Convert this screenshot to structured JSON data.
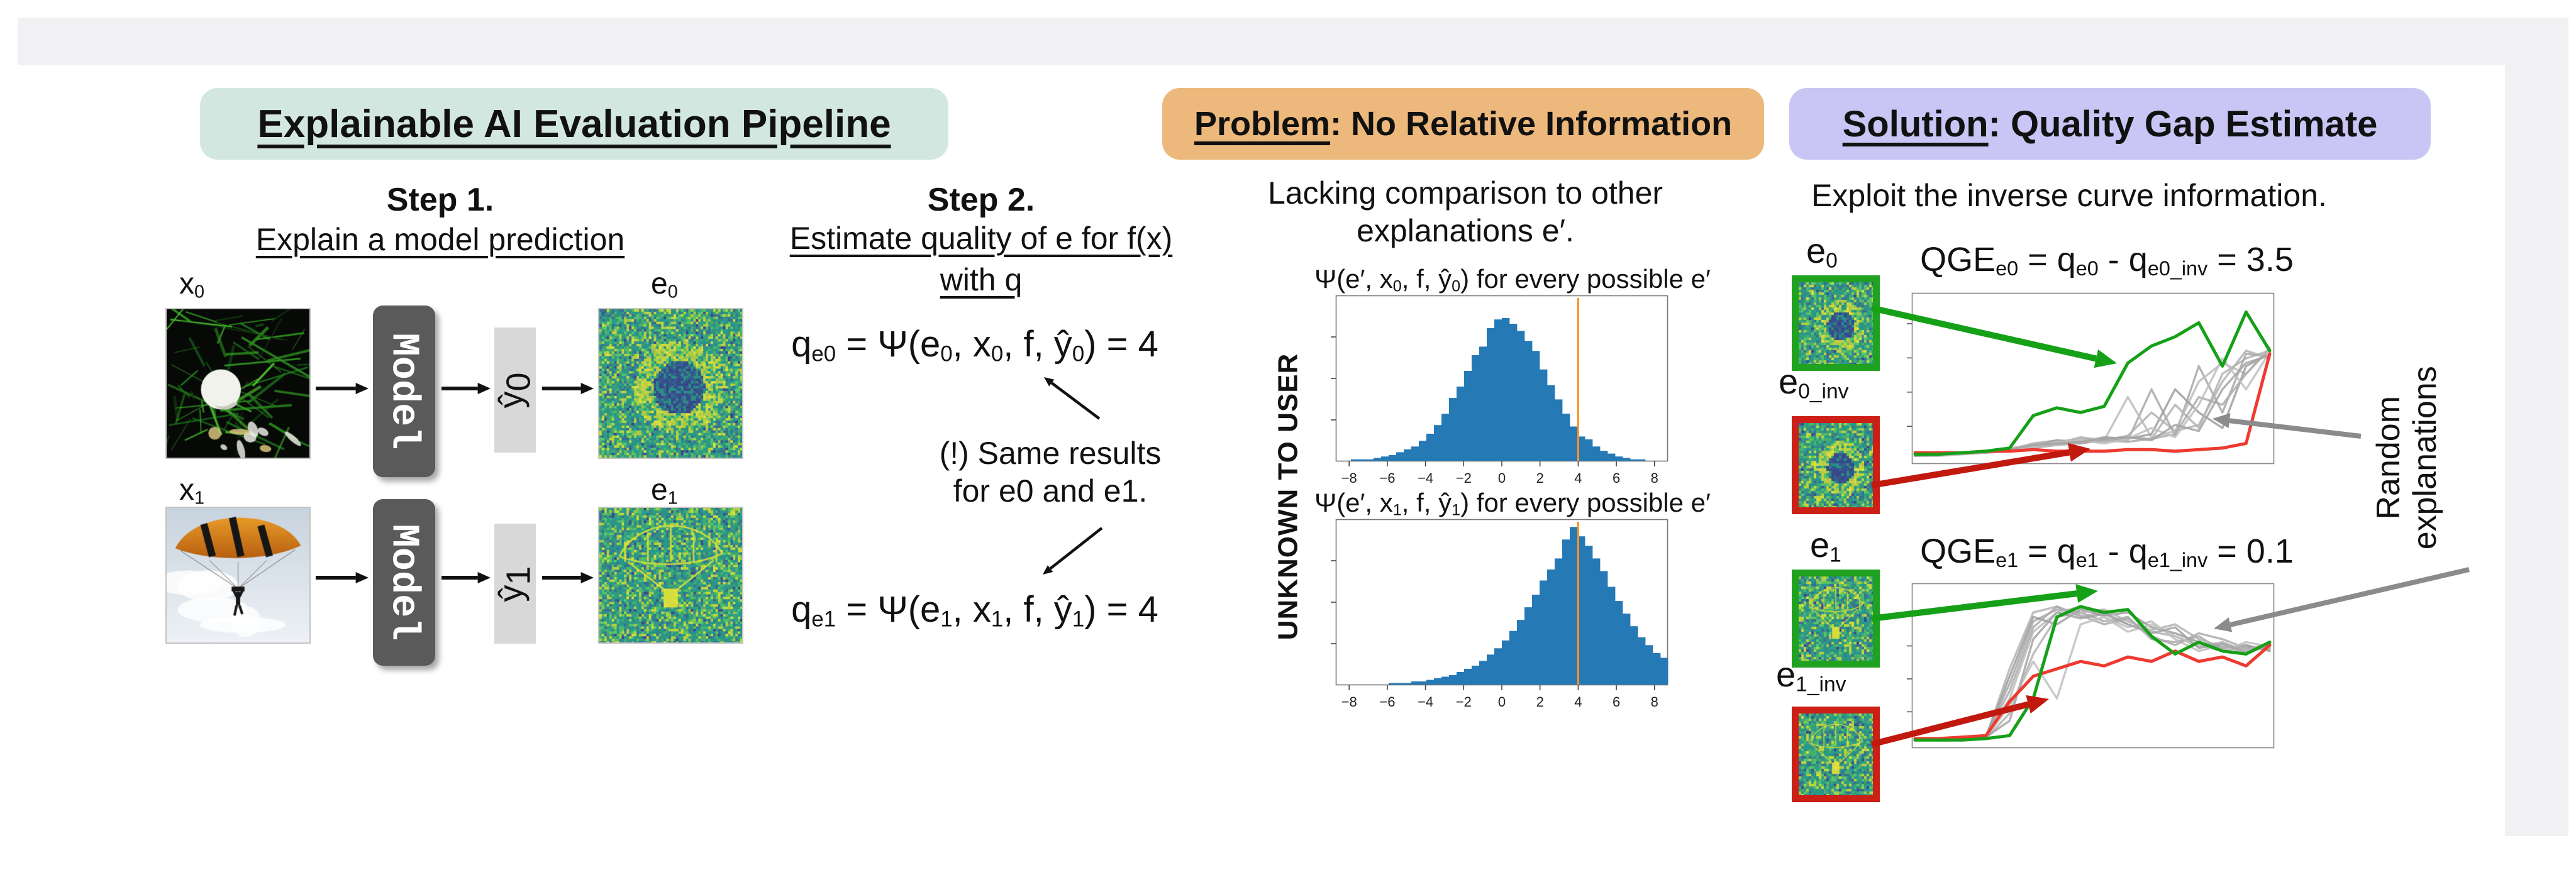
{
  "colors": {
    "pipeline_badge": "#d2e7e0",
    "problem_badge": "#edb87c",
    "solution_badge": "#c9c5f4",
    "model_box": "#5a5a5a",
    "prediction_box": "#d8d8d8",
    "hist_bar_blue": "#2579b5",
    "hist_marker_orange": "#f79428",
    "good_explanation_green": "#1fa21f",
    "inverse_explanation_red": "#cc1f15",
    "random_explanation_gray": "#b3b3b3"
  },
  "pipeline": {
    "title": "Explainable AI Evaluation Pipeline",
    "step1": {
      "title": "Step 1.",
      "subtitle": "Explain a model prediction"
    },
    "step2": {
      "title": "Step 2.",
      "subtitle_line1": "Estimate quality of e for f(x)",
      "subtitle_line2": "with q",
      "formula_e0": [
        {
          "t": "q"
        },
        {
          "s": "e0"
        },
        {
          "t": " = Ψ(e"
        },
        {
          "s": "0"
        },
        {
          "t": ", x"
        },
        {
          "s": "0"
        },
        {
          "t": ", f, ŷ"
        },
        {
          "s": "0"
        },
        {
          "t": ") = 4"
        }
      ],
      "note_line1": "(!) Same results",
      "note_line2": "for e0 and e1.",
      "formula_e1": [
        {
          "t": "q"
        },
        {
          "s": "e1"
        },
        {
          "t": " = Ψ(e"
        },
        {
          "s": "1"
        },
        {
          "t": ", x"
        },
        {
          "s": "1"
        },
        {
          "t": ", f, ŷ"
        },
        {
          "s": "1"
        },
        {
          "t": ") = 4"
        }
      ]
    },
    "rows": [
      {
        "input_label": [
          {
            "t": "x"
          },
          {
            "s": "0"
          }
        ],
        "model_label": "Model",
        "pred_label": [
          {
            "t": "ŷ"
          },
          {
            "s": "0"
          }
        ],
        "expl_label": [
          {
            "t": "e"
          },
          {
            "s": "0"
          }
        ]
      },
      {
        "input_label": [
          {
            "t": "x"
          },
          {
            "s": "1"
          }
        ],
        "model_label": "Model",
        "pred_label": [
          {
            "t": "ŷ"
          },
          {
            "s": "1"
          }
        ],
        "expl_label": [
          {
            "t": "e"
          },
          {
            "s": "1"
          }
        ]
      }
    ]
  },
  "problem": {
    "badge_underlined": "Problem",
    "badge_rest": ": No Relative Information",
    "desc_line1": "Lacking comparison to other",
    "desc_line2": "explanations e′.",
    "unknown_label": "UNKNOWN TO USER",
    "hist0_title": [
      {
        "t": "Ψ(e′, x"
      },
      {
        "s": "0"
      },
      {
        "t": ", f, ŷ"
      },
      {
        "s": "0"
      },
      {
        "t": ") for every possible e′"
      }
    ],
    "hist1_title": [
      {
        "t": "Ψ(e′, x"
      },
      {
        "s": "1"
      },
      {
        "t": ", f, ŷ"
      },
      {
        "s": "1"
      },
      {
        "t": ") for every possible e′"
      }
    ]
  },
  "solution": {
    "badge_underlined": "Solution",
    "badge_rest": ": Quality Gap Estimate",
    "desc": "Exploit the inverse curve information.",
    "qge0": [
      {
        "t": "QGE"
      },
      {
        "s": "e0"
      },
      {
        "t": " = q"
      },
      {
        "s": "e0"
      },
      {
        "t": " - q"
      },
      {
        "s": "e0_inv"
      },
      {
        "t": " = 3.5"
      }
    ],
    "qge1": [
      {
        "t": "QGE"
      },
      {
        "s": "e1"
      },
      {
        "t": " = q"
      },
      {
        "s": "e1"
      },
      {
        "t": " - q"
      },
      {
        "s": "e1_inv"
      },
      {
        "t": " = 0.1"
      }
    ],
    "labels": {
      "e0": [
        {
          "t": "e"
        },
        {
          "s": "0"
        }
      ],
      "e0_inv": [
        {
          "t": "e"
        },
        {
          "s": "0_inv"
        }
      ],
      "e1": [
        {
          "t": "e"
        },
        {
          "s": "1"
        }
      ],
      "e1_inv": [
        {
          "t": "e"
        },
        {
          "s": "1_inv"
        }
      ]
    },
    "random_line1": "Random",
    "random_line2": "explanations"
  },
  "chart_data": [
    {
      "type": "bar",
      "title": "Ψ(e′, x0, f, ŷ0) for every possible e′",
      "x_range": [
        -8.7,
        8.7
      ],
      "tick_labels": [
        -8,
        -6,
        -4,
        -2,
        0,
        2,
        4,
        6,
        8
      ],
      "bin_start": -8.6,
      "bin_step": 0.4,
      "bar_color": "#2579b5",
      "marker_x": 4,
      "marker_color": "#f79428",
      "height_frac": 0.86,
      "values": [
        0,
        0,
        0.01,
        0.01,
        0.01,
        0.02,
        0.03,
        0.04,
        0.06,
        0.08,
        0.1,
        0.14,
        0.19,
        0.25,
        0.33,
        0.44,
        0.52,
        0.63,
        0.74,
        0.8,
        0.93,
        0.99,
        1.0,
        0.96,
        0.91,
        0.84,
        0.77,
        0.64,
        0.53,
        0.43,
        0.33,
        0.24,
        0.17,
        0.15,
        0.1,
        0.07,
        0.05,
        0.03,
        0.02,
        0.01,
        0.01,
        0,
        0,
        0
      ]
    },
    {
      "type": "bar",
      "title": "Ψ(e′, x1, f, ŷ1) for every possible e′",
      "x_range": [
        -8.7,
        8.7
      ],
      "tick_labels": [
        -8,
        -6,
        -4,
        -2,
        0,
        2,
        4,
        6,
        8
      ],
      "bin_start": -8.6,
      "bin_step": 0.4,
      "bar_color": "#2579b5",
      "marker_x": 4,
      "marker_color": "#f79428",
      "height_frac": 0.95,
      "values": [
        0,
        0,
        0,
        0,
        0,
        0,
        0,
        0.01,
        0.01,
        0.01,
        0.02,
        0.02,
        0.03,
        0.04,
        0.05,
        0.06,
        0.08,
        0.1,
        0.12,
        0.15,
        0.19,
        0.23,
        0.28,
        0.34,
        0.41,
        0.49,
        0.57,
        0.66,
        0.73,
        0.8,
        0.92,
        1.0,
        0.94,
        0.88,
        0.8,
        0.72,
        0.62,
        0.53,
        0.45,
        0.37,
        0.3,
        0.25,
        0.2,
        0.17
      ]
    },
    {
      "type": "line",
      "title": "QGE_e0 inverse curve comparison",
      "series": [
        {
          "name": "random-1",
          "color": "#b3b3b3",
          "values": [
            0.02,
            0.02,
            0.03,
            0.04,
            0.05,
            0.08,
            0.1,
            0.12,
            0.11,
            0.14,
            0.13,
            0.35,
            0.2,
            0.55,
            0.65,
            0.7
          ]
        },
        {
          "name": "random-2",
          "color": "#a8a8a8",
          "values": [
            0.02,
            0.03,
            0.03,
            0.04,
            0.06,
            0.1,
            0.12,
            0.1,
            0.13,
            0.12,
            0.45,
            0.15,
            0.6,
            0.3,
            0.68,
            0.66
          ]
        },
        {
          "name": "random-3",
          "color": "#bcbcbc",
          "values": [
            0.02,
            0.02,
            0.04,
            0.05,
            0.07,
            0.09,
            0.11,
            0.13,
            0.12,
            0.4,
            0.14,
            0.18,
            0.5,
            0.62,
            0.55,
            0.72
          ]
        },
        {
          "name": "random-4",
          "color": "#9d9d9d",
          "values": [
            0.02,
            0.03,
            0.04,
            0.05,
            0.06,
            0.08,
            0.12,
            0.11,
            0.14,
            0.13,
            0.16,
            0.45,
            0.3,
            0.2,
            0.6,
            0.68
          ]
        },
        {
          "name": "random-5",
          "color": "#b3b3b3",
          "values": [
            0.02,
            0.02,
            0.03,
            0.05,
            0.06,
            0.09,
            0.1,
            0.14,
            0.12,
            0.15,
            0.3,
            0.18,
            0.22,
            0.5,
            0.7,
            0.65
          ]
        },
        {
          "name": "random-6",
          "color": "#ababab",
          "values": [
            0.02,
            0.03,
            0.03,
            0.04,
            0.05,
            0.07,
            0.09,
            0.1,
            0.12,
            0.11,
            0.13,
            0.16,
            0.4,
            0.35,
            0.55,
            0.71
          ]
        },
        {
          "name": "random-7",
          "color": "#c0c0c0",
          "values": [
            0.02,
            0.02,
            0.03,
            0.04,
            0.05,
            0.08,
            0.11,
            0.12,
            0.1,
            0.13,
            0.2,
            0.14,
            0.35,
            0.65,
            0.45,
            0.69
          ]
        },
        {
          "name": "random-8",
          "color": "#a3a3a3",
          "values": [
            0.02,
            0.03,
            0.04,
            0.04,
            0.06,
            0.09,
            0.1,
            0.11,
            0.13,
            0.14,
            0.12,
            0.22,
            0.18,
            0.45,
            0.62,
            0.67
          ]
        },
        {
          "name": "e0_inv",
          "color": "#ee3a30",
          "values": [
            0.04,
            0.04,
            0.04,
            0.05,
            0.05,
            0.06,
            0.05,
            0.05,
            0.05,
            0.06,
            0.06,
            0.05,
            0.06,
            0.07,
            0.1,
            0.68
          ]
        },
        {
          "name": "e0",
          "color": "#15a018",
          "values": [
            0.03,
            0.03,
            0.04,
            0.05,
            0.07,
            0.28,
            0.33,
            0.3,
            0.34,
            0.62,
            0.73,
            0.79,
            0.88,
            0.6,
            0.95,
            0.7
          ]
        }
      ]
    },
    {
      "type": "line",
      "title": "QGE_e1 inverse curve comparison",
      "series": [
        {
          "name": "random-1",
          "color": "#b3b3b3",
          "values": [
            0.02,
            0.02,
            0.03,
            0.04,
            0.5,
            0.88,
            0.92,
            0.85,
            0.88,
            0.8,
            0.75,
            0.72,
            0.65,
            0.68,
            0.62,
            0.65
          ]
        },
        {
          "name": "random-2",
          "color": "#a8a8a8",
          "values": [
            0.02,
            0.02,
            0.03,
            0.05,
            0.4,
            0.82,
            0.9,
            0.88,
            0.82,
            0.85,
            0.7,
            0.68,
            0.72,
            0.62,
            0.65,
            0.63
          ]
        },
        {
          "name": "random-3",
          "color": "#bcbcbc",
          "values": [
            0.02,
            0.03,
            0.03,
            0.04,
            0.3,
            0.75,
            0.88,
            0.92,
            0.85,
            0.78,
            0.82,
            0.7,
            0.62,
            0.66,
            0.6,
            0.66
          ]
        },
        {
          "name": "random-4",
          "color": "#9d9d9d",
          "values": [
            0.02,
            0.02,
            0.03,
            0.04,
            0.45,
            0.85,
            0.8,
            0.9,
            0.86,
            0.88,
            0.78,
            0.74,
            0.68,
            0.64,
            0.66,
            0.62
          ]
        },
        {
          "name": "random-5",
          "color": "#b3b3b3",
          "values": [
            0.02,
            0.02,
            0.02,
            0.03,
            0.2,
            0.6,
            0.85,
            0.88,
            0.9,
            0.82,
            0.76,
            0.8,
            0.7,
            0.65,
            0.63,
            0.67
          ]
        },
        {
          "name": "random-6",
          "color": "#ababab",
          "values": [
            0.02,
            0.03,
            0.03,
            0.05,
            0.35,
            0.78,
            0.92,
            0.86,
            0.8,
            0.84,
            0.72,
            0.66,
            0.74,
            0.7,
            0.64,
            0.64
          ]
        },
        {
          "name": "random-7",
          "color": "#c0c0c0",
          "values": [
            0.02,
            0.02,
            0.03,
            0.04,
            0.25,
            0.55,
            0.3,
            0.8,
            0.85,
            0.75,
            0.8,
            0.72,
            0.66,
            0.62,
            0.68,
            0.65
          ]
        },
        {
          "name": "random-8",
          "color": "#a3a3a3",
          "values": [
            0.02,
            0.02,
            0.03,
            0.04,
            0.15,
            0.7,
            0.88,
            0.84,
            0.87,
            0.8,
            0.74,
            0.78,
            0.64,
            0.67,
            0.61,
            0.66
          ]
        },
        {
          "name": "e1_inv",
          "color": "#ee3a30",
          "values": [
            0.03,
            0.03,
            0.04,
            0.05,
            0.28,
            0.45,
            0.5,
            0.55,
            0.52,
            0.58,
            0.55,
            0.62,
            0.55,
            0.58,
            0.52,
            0.66
          ]
        },
        {
          "name": "e1",
          "color": "#15a018",
          "values": [
            0.02,
            0.02,
            0.02,
            0.03,
            0.05,
            0.3,
            0.85,
            0.92,
            0.88,
            0.9,
            0.72,
            0.6,
            0.68,
            0.62,
            0.6,
            0.68
          ]
        }
      ]
    }
  ]
}
